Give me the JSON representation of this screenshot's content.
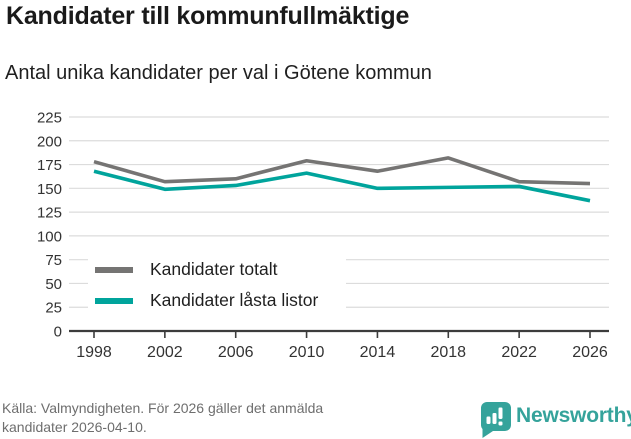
{
  "header": {
    "title": "Kandidater till kommunfullmäktige",
    "subtitle": "Antal unika kandidater per val i Götene kommun"
  },
  "chart_data": {
    "type": "line",
    "title": "Kandidater till kommunfullmäktige",
    "subtitle": "Antal unika kandidater per val i Götene kommun",
    "x_labels": [
      "1998",
      "2002",
      "2006",
      "2010",
      "2014",
      "2018",
      "2022",
      "2026"
    ],
    "series": [
      {
        "name": "Kandidater totalt",
        "color": "#757473",
        "values": [
          178,
          157,
          160,
          179,
          168,
          182,
          157,
          155
        ]
      },
      {
        "name": "Kandidater låsta listor",
        "color": "#00a49c",
        "values": [
          168,
          149,
          153,
          166,
          150,
          151,
          152,
          137
        ]
      }
    ],
    "ylim": [
      0,
      225
    ],
    "yticks": [
      0,
      25,
      50,
      75,
      100,
      125,
      150,
      175,
      200,
      225
    ],
    "xlabel": "",
    "ylabel": "",
    "grid": true,
    "legend_position": "inside-bottom-left"
  },
  "footer": {
    "source_line1": "Källa: Valmyndigheten. För 2026 gäller det anmälda",
    "source_line2": "kandidater 2026-04-10.",
    "brand_name": "Newsworthy"
  },
  "colors": {
    "grid": "#dcdcdc",
    "axis": "#3c3c3c",
    "tick_label": "#333333",
    "series_total": "#757473",
    "series_locked": "#00a49c",
    "footer_text": "#6e6e6e",
    "brand_teal": "#35a39b"
  }
}
